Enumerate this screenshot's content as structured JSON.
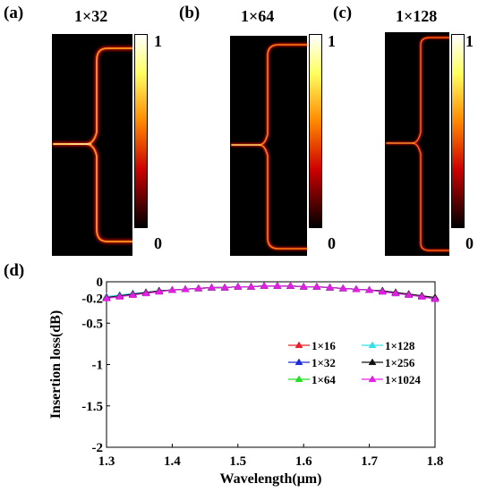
{
  "panels": [
    {
      "letter": "(a)",
      "title": "1×32"
    },
    {
      "letter": "(b)",
      "title": "1×64"
    },
    {
      "letter": "(c)",
      "title": "1×128"
    }
  ],
  "colorbar": {
    "max_label": "1",
    "min_label": "0",
    "colormap": "hot"
  },
  "chart_letter": "(d)",
  "chart_data": {
    "type": "line",
    "xlabel": "Wavelength(μm)",
    "ylabel": "Insertion loss(dB)",
    "xlim": [
      1.3,
      1.8
    ],
    "ylim": [
      -2,
      0
    ],
    "xticks": [
      "1.3",
      "1.4",
      "1.5",
      "1.6",
      "1.7",
      "1.8"
    ],
    "yticks": [
      "0",
      "-0.2",
      "-0.5",
      "-1",
      "-1.5",
      "-2"
    ],
    "ytick_values": [
      0,
      -0.2,
      -0.5,
      -1,
      -1.5,
      -2
    ],
    "grid": false,
    "legend_placement": "right-middle",
    "x": [
      1.3,
      1.32,
      1.34,
      1.36,
      1.38,
      1.4,
      1.42,
      1.44,
      1.46,
      1.48,
      1.5,
      1.52,
      1.54,
      1.56,
      1.58,
      1.6,
      1.62,
      1.64,
      1.66,
      1.68,
      1.7,
      1.72,
      1.74,
      1.76,
      1.78,
      1.8
    ],
    "series": [
      {
        "name": "1×16",
        "color": "#e8202a",
        "marker": "triangle-up",
        "values": [
          -0.19,
          -0.17,
          -0.15,
          -0.13,
          -0.11,
          -0.1,
          -0.09,
          -0.08,
          -0.07,
          -0.07,
          -0.06,
          -0.06,
          -0.05,
          -0.05,
          -0.05,
          -0.06,
          -0.06,
          -0.07,
          -0.08,
          -0.09,
          -0.1,
          -0.11,
          -0.13,
          -0.15,
          -0.17,
          -0.19
        ]
      },
      {
        "name": "1×32",
        "color": "#1a2cd6",
        "marker": "triangle-up",
        "values": [
          -0.19,
          -0.17,
          -0.15,
          -0.13,
          -0.11,
          -0.1,
          -0.09,
          -0.08,
          -0.07,
          -0.07,
          -0.06,
          -0.06,
          -0.05,
          -0.05,
          -0.05,
          -0.06,
          -0.06,
          -0.07,
          -0.08,
          -0.09,
          -0.1,
          -0.11,
          -0.13,
          -0.15,
          -0.17,
          -0.2
        ]
      },
      {
        "name": "1×64",
        "color": "#22e022",
        "marker": "triangle-up",
        "values": [
          -0.19,
          -0.17,
          -0.15,
          -0.13,
          -0.11,
          -0.1,
          -0.09,
          -0.08,
          -0.07,
          -0.07,
          -0.06,
          -0.06,
          -0.05,
          -0.05,
          -0.05,
          -0.06,
          -0.06,
          -0.07,
          -0.08,
          -0.09,
          -0.1,
          -0.11,
          -0.13,
          -0.15,
          -0.17,
          -0.2
        ]
      },
      {
        "name": "1×128",
        "color": "#33e0e8",
        "marker": "triangle-up",
        "values": [
          -0.18,
          -0.16,
          -0.14,
          -0.13,
          -0.11,
          -0.1,
          -0.09,
          -0.08,
          -0.07,
          -0.07,
          -0.06,
          -0.06,
          -0.05,
          -0.05,
          -0.05,
          -0.06,
          -0.06,
          -0.07,
          -0.08,
          -0.09,
          -0.1,
          -0.12,
          -0.14,
          -0.16,
          -0.18,
          -0.2
        ]
      },
      {
        "name": "1×256",
        "color": "#111111",
        "marker": "triangle-up",
        "values": [
          -0.19,
          -0.17,
          -0.15,
          -0.13,
          -0.11,
          -0.1,
          -0.09,
          -0.08,
          -0.07,
          -0.07,
          -0.06,
          -0.06,
          -0.05,
          -0.05,
          -0.05,
          -0.06,
          -0.06,
          -0.07,
          -0.08,
          -0.09,
          -0.1,
          -0.11,
          -0.13,
          -0.15,
          -0.17,
          -0.19
        ]
      },
      {
        "name": "1×1024",
        "color": "#e020e0",
        "marker": "triangle-up",
        "values": [
          -0.2,
          -0.18,
          -0.16,
          -0.14,
          -0.12,
          -0.1,
          -0.09,
          -0.08,
          -0.07,
          -0.07,
          -0.06,
          -0.06,
          -0.05,
          -0.05,
          -0.05,
          -0.06,
          -0.06,
          -0.07,
          -0.08,
          -0.09,
          -0.1,
          -0.12,
          -0.14,
          -0.16,
          -0.18,
          -0.21
        ]
      }
    ]
  }
}
